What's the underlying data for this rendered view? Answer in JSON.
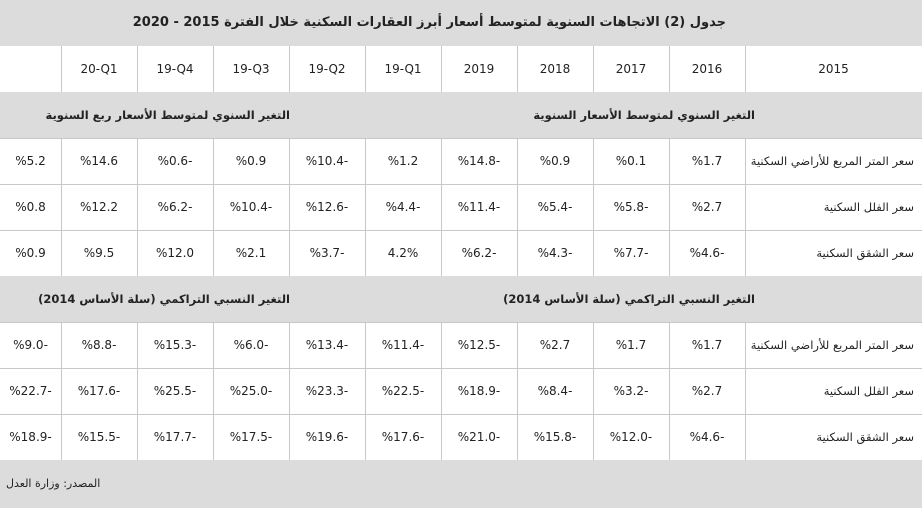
{
  "title": "جدول (2) الاتجاهات السنوية لمتوسط أسعار أبرز العقارات السكنية خلال الفترة 2015 - 2020",
  "header": [
    "2015",
    "2016",
    "2017",
    "2018",
    "2019",
    "19-Q1",
    "19-Q2",
    "19-Q3",
    "19-Q4",
    "20-Q1"
  ],
  "sections": [
    {
      "labels": [
        "التغير السنوي لمتوسط الأسعار السنوية",
        "التغير السنوي لمتوسط الأسعار ربع السنوية"
      ],
      "rows": [
        {
          "label": "سعر المتر المربع للأراضي السكنية",
          "values": [
            "%1.7",
            "%0.1",
            "%0.9",
            "%14.8-",
            "%1.2",
            "%10.4-",
            "%0.9",
            "%0.6-",
            "%14.6",
            "%5.2"
          ]
        },
        {
          "label": "سعر الفلل السكنية",
          "values": [
            "%2.7",
            "%5.8-",
            "%5.4-",
            "%11.4-",
            "%4.4-",
            "%12.6-",
            "%10.4-",
            "%6.2-",
            "%12.2",
            "%0.8"
          ]
        },
        {
          "label": "سعر الشقق السكنية",
          "values": [
            "%4.6-",
            "%7.7-",
            "%4.3-",
            "%6.2-",
            "4.2%",
            "%3.7-",
            "%2.1",
            "%12.0",
            "%9.5",
            "%0.9"
          ]
        }
      ]
    },
    {
      "labels": [
        "التغير النسبي التراكمي (سلة الأساس 2014)",
        "التغير النسبي التراكمي  (سلة الأساس 2014)"
      ],
      "rows": [
        {
          "label": "سعر المتر المربع للأراضي السكنية",
          "values": [
            "%1.7",
            "%1.7",
            "%2.7",
            "%12.5-",
            "%11.4-",
            "%13.4-",
            "%6.0-",
            "%15.3-",
            "%8.8-",
            "%9.0-"
          ]
        },
        {
          "label": "سعر الفلل السكنية",
          "values": [
            "%2.7",
            "%3.2-",
            "%8.4-",
            "%18.9-",
            "%22.5-",
            "%23.3-",
            "%25.0-",
            "%25.5-",
            "%17.6-",
            "%22.7-"
          ]
        },
        {
          "label": "سعر الشقق السكنية",
          "values": [
            "%4.6-",
            "%12.0-",
            "%15.8-",
            "%21.0-",
            "%17.6-",
            "%19.6-",
            "%17.5-",
            "%17.7-",
            "%15.5-",
            "%18.9-"
          ]
        }
      ]
    }
  ],
  "source": "المصدر: وزارة العدل"
}
